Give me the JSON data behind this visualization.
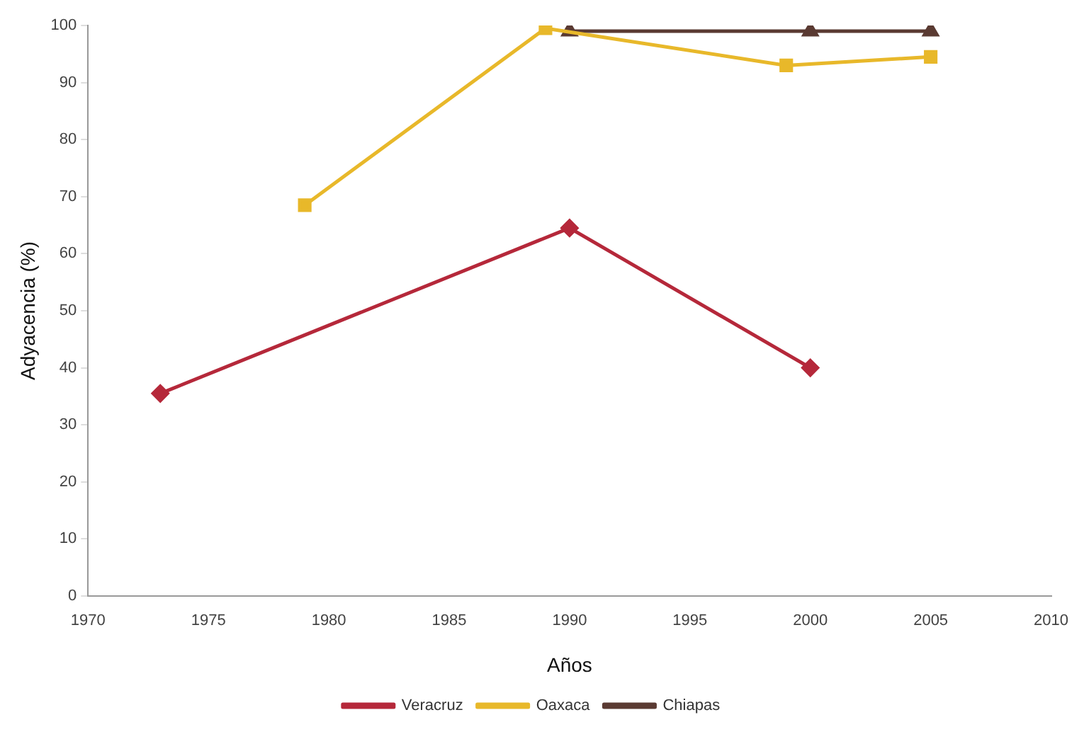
{
  "chart_data": {
    "type": "line",
    "xlabel": "Años",
    "ylabel": "Adyacencia (%)",
    "xlim": [
      1970,
      2010
    ],
    "xticks": [
      1970,
      1975,
      1980,
      1985,
      1990,
      1995,
      2000,
      2005,
      2010
    ],
    "ylim": [
      0,
      100
    ],
    "yticks": [
      0,
      10,
      20,
      30,
      40,
      50,
      60,
      70,
      80,
      90,
      100
    ],
    "grid": false,
    "legend": "bottom",
    "series": [
      {
        "name": "Veracruz",
        "color": "#b5283a",
        "marker": "diamond",
        "x": [
          1973,
          1990,
          2000
        ],
        "values": [
          35.5,
          64.5,
          40
        ]
      },
      {
        "name": "Oaxaca",
        "color": "#e8b82a",
        "marker": "square",
        "x": [
          1979,
          1989,
          1999,
          2005
        ],
        "values": [
          68.5,
          99.5,
          93,
          94.5
        ]
      },
      {
        "name": "Chiapas",
        "color": "#5a3a32",
        "marker": "triangle",
        "x": [
          1990,
          2000,
          2005
        ],
        "values": [
          99,
          99,
          99
        ]
      }
    ]
  }
}
